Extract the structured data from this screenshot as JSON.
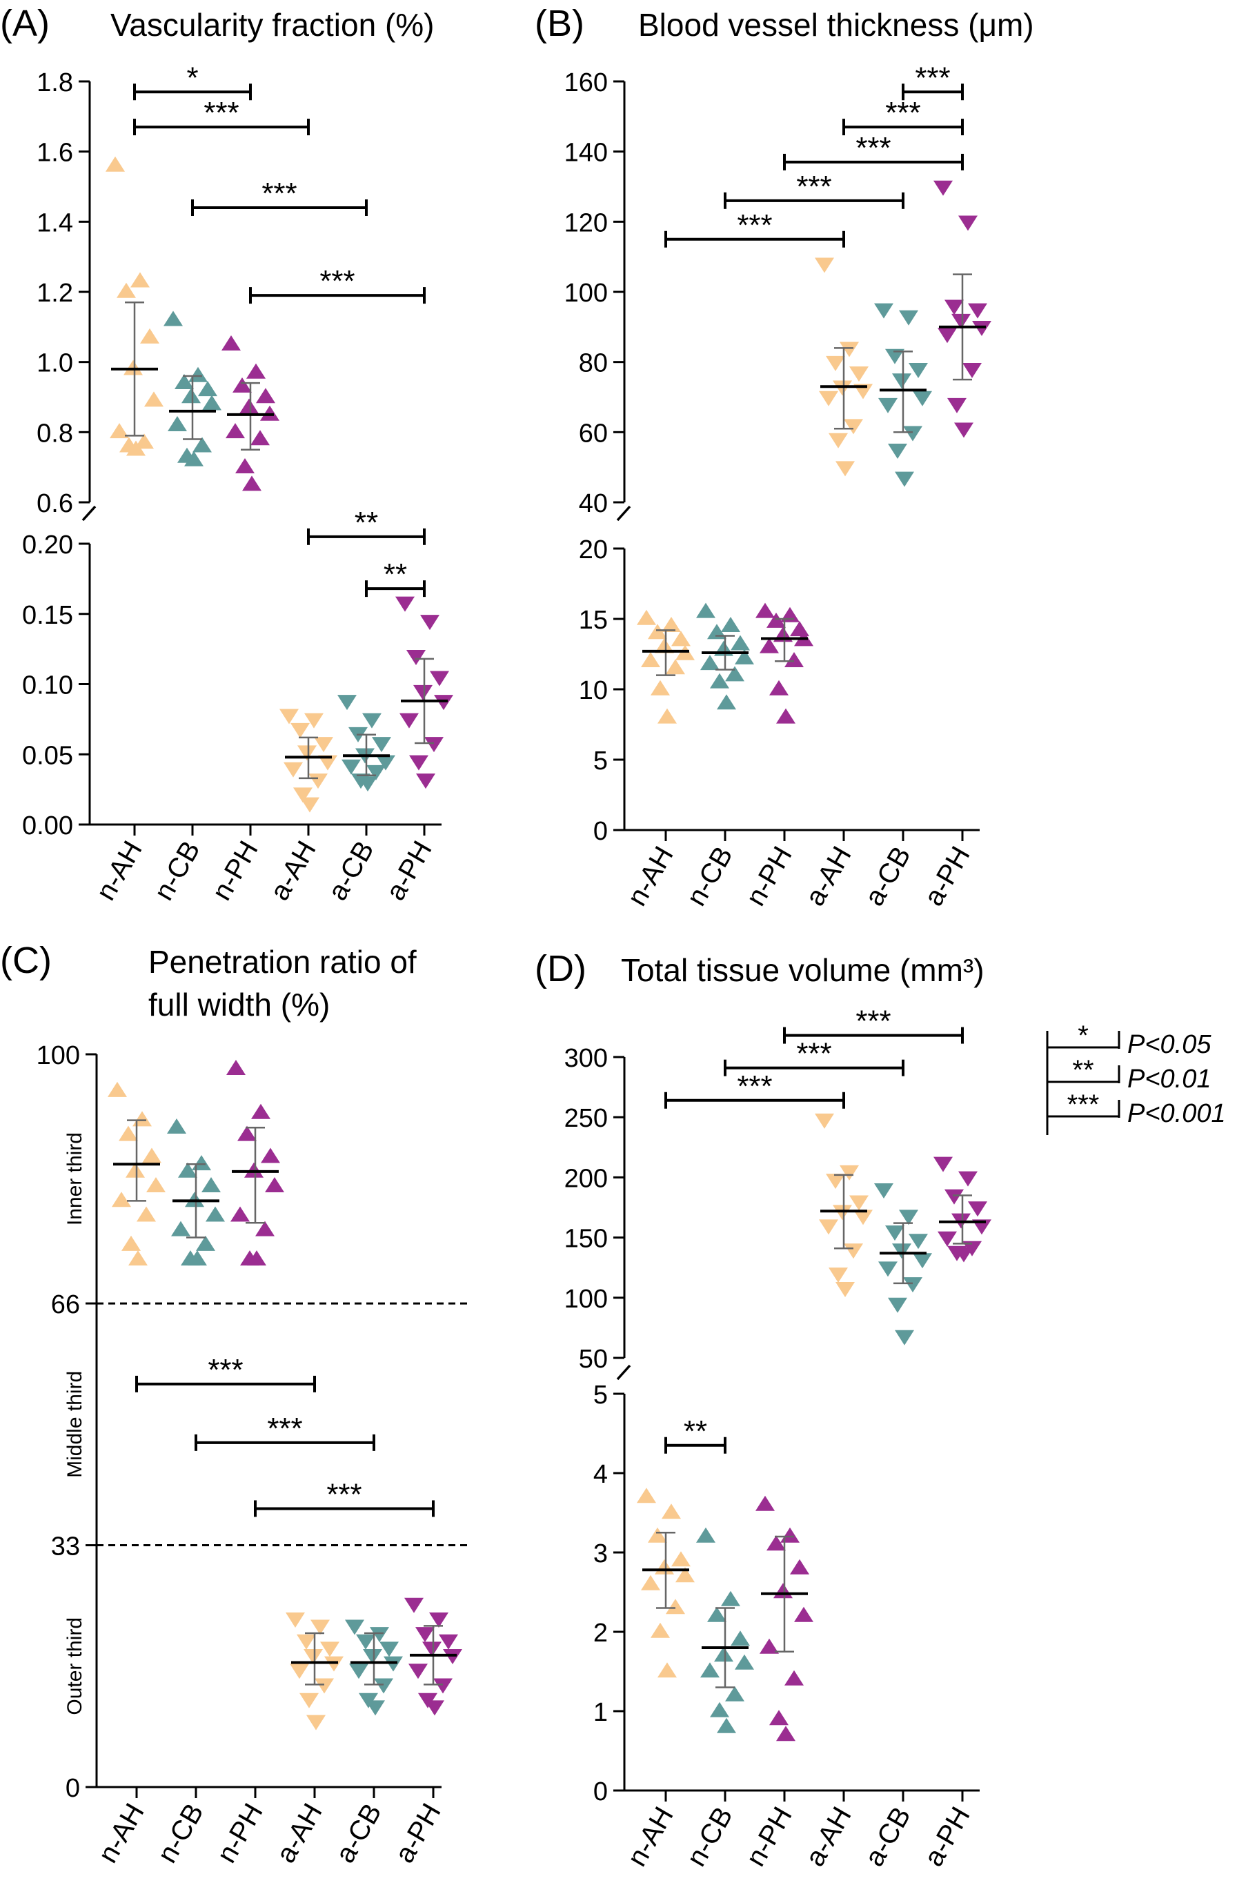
{
  "colors": {
    "AH": "#F9C98E",
    "CB": "#5E9A9A",
    "PH": "#9B2D91"
  },
  "legend": [
    {
      "stars": "*",
      "label": "P<0.05"
    },
    {
      "stars": "**",
      "label": "P<0.01"
    },
    {
      "stars": "***",
      "label": "P<0.001"
    }
  ],
  "chart_data": [
    {
      "type": "scatter",
      "panel": "(A)",
      "title": "Vascularity fraction (%)",
      "categories": [
        "n-AH",
        "n-CB",
        "n-PH",
        "a-AH",
        "a-CB",
        "a-PH"
      ],
      "broken_axis": {
        "upper": {
          "ylim": [
            0.6,
            1.8
          ],
          "ticks": [
            "0.6",
            "0.8",
            "1.0",
            "1.2",
            "1.4",
            "1.6",
            "1.8"
          ]
        },
        "lower": {
          "ylim": [
            0,
            0.2
          ],
          "ticks": [
            "0.00",
            "0.05",
            "0.10",
            "0.15",
            "0.20"
          ]
        }
      },
      "series": [
        {
          "category": "n-AH",
          "mean": 0.98,
          "sd": [
            0.79,
            1.17
          ],
          "points": [
            1.56,
            1.23,
            1.2,
            1.07,
            0.98,
            0.89,
            0.8,
            0.77,
            0.76,
            0.75
          ]
        },
        {
          "category": "n-CB",
          "mean": 0.86,
          "sd": [
            0.78,
            0.96
          ],
          "points": [
            1.12,
            0.96,
            0.94,
            0.92,
            0.9,
            0.88,
            0.82,
            0.76,
            0.73,
            0.72
          ]
        },
        {
          "category": "n-PH",
          "mean": 0.85,
          "sd": [
            0.75,
            0.94
          ],
          "points": [
            1.05,
            0.97,
            0.93,
            0.9,
            0.87,
            0.85,
            0.8,
            0.78,
            0.7,
            0.65
          ]
        },
        {
          "category": "a-AH",
          "mean": 0.048,
          "sd": [
            0.033,
            0.062
          ],
          "points": [
            0.078,
            0.075,
            0.068,
            0.058,
            0.052,
            0.045,
            0.04,
            0.032,
            0.022,
            0.015
          ]
        },
        {
          "category": "a-CB",
          "mean": 0.049,
          "sd": [
            0.035,
            0.064
          ],
          "points": [
            0.088,
            0.075,
            0.065,
            0.058,
            0.05,
            0.045,
            0.042,
            0.038,
            0.032,
            0.03
          ]
        },
        {
          "category": "a-PH",
          "mean": 0.088,
          "sd": [
            0.058,
            0.118
          ],
          "points": [
            0.158,
            0.145,
            0.12,
            0.105,
            0.095,
            0.088,
            0.075,
            0.058,
            0.045,
            0.032
          ]
        }
      ],
      "comparisons": [
        {
          "from": "n-AH",
          "to": "n-PH",
          "label": "*",
          "y": 1.77
        },
        {
          "from": "n-AH",
          "to": "a-AH",
          "label": "***",
          "y": 1.67
        },
        {
          "from": "n-CB",
          "to": "a-CB",
          "label": "***",
          "y": 1.44
        },
        {
          "from": "n-PH",
          "to": "a-PH",
          "label": "***",
          "y": 1.19
        },
        {
          "from": "a-AH",
          "to": "a-PH",
          "label": "**",
          "y": 0.205
        },
        {
          "from": "a-CB",
          "to": "a-PH",
          "label": "**",
          "y": 0.168
        }
      ]
    },
    {
      "type": "scatter",
      "panel": "(B)",
      "title": "Blood vessel thickness (μm)",
      "categories": [
        "n-AH",
        "n-CB",
        "n-PH",
        "a-AH",
        "a-CB",
        "a-PH"
      ],
      "broken_axis": {
        "upper": {
          "ylim": [
            40,
            160
          ],
          "ticks": [
            "40",
            "60",
            "80",
            "100",
            "120",
            "140",
            "160"
          ]
        },
        "lower": {
          "ylim": [
            0,
            20
          ],
          "ticks": [
            "0",
            "5",
            "10",
            "15",
            "20"
          ]
        }
      },
      "series": [
        {
          "category": "n-AH",
          "mean": 12.7,
          "sd": [
            11.0,
            14.2
          ],
          "points": [
            15.0,
            14.5,
            14.0,
            13.5,
            13.0,
            12.5,
            12.0,
            11.5,
            10.0,
            8.0
          ]
        },
        {
          "category": "n-CB",
          "mean": 12.6,
          "sd": [
            11.4,
            13.8
          ],
          "points": [
            15.5,
            14.5,
            14.0,
            13.2,
            12.8,
            12.2,
            11.8,
            11.0,
            10.5,
            9.0
          ]
        },
        {
          "category": "n-PH",
          "mean": 13.6,
          "sd": [
            12.0,
            15.0
          ],
          "points": [
            15.5,
            15.2,
            14.8,
            14.2,
            13.8,
            13.5,
            13.0,
            12.0,
            10.0,
            8.0
          ]
        },
        {
          "category": "a-AH",
          "mean": 73,
          "sd": [
            61,
            84
          ],
          "points": [
            108,
            84,
            80,
            77,
            73,
            72,
            70,
            62,
            58,
            50
          ]
        },
        {
          "category": "a-CB",
          "mean": 72,
          "sd": [
            60,
            83
          ],
          "points": [
            95,
            93,
            82,
            78,
            75,
            70,
            68,
            60,
            55,
            47
          ]
        },
        {
          "category": "a-PH",
          "mean": 90,
          "sd": [
            75,
            105
          ],
          "points": [
            130,
            120,
            96,
            95,
            92,
            90,
            88,
            78,
            68,
            61
          ]
        }
      ],
      "comparisons": [
        {
          "from": "a-CB",
          "to": "a-PH",
          "label": "***",
          "y": 157
        },
        {
          "from": "a-AH",
          "to": "a-PH",
          "label": "***",
          "y": 147
        },
        {
          "from": "n-PH",
          "to": "a-PH",
          "label": "***",
          "y": 137
        },
        {
          "from": "n-CB",
          "to": "a-CB",
          "label": "***",
          "y": 126
        },
        {
          "from": "n-AH",
          "to": "a-AH",
          "label": "***",
          "y": 115
        }
      ]
    },
    {
      "type": "scatter",
      "panel": "(C)",
      "title": "Penetration ratio of full width (%)",
      "title_lines": [
        "Penetration ratio of",
        "full width (%)"
      ],
      "categories": [
        "n-AH",
        "n-CB",
        "n-PH",
        "a-AH",
        "a-CB",
        "a-PH"
      ],
      "ylim": [
        0,
        100
      ],
      "yticks": [
        "0",
        "33",
        "66",
        "100"
      ],
      "regions": [
        "Inner third",
        "Middle third",
        "Outer third"
      ],
      "series": [
        {
          "category": "n-AH",
          "mean": 85,
          "sd": [
            80,
            91
          ],
          "points": [
            95,
            91,
            89,
            86,
            84,
            82,
            80,
            78,
            74,
            72
          ]
        },
        {
          "category": "n-CB",
          "mean": 80,
          "sd": [
            75,
            85
          ],
          "points": [
            90,
            85,
            84,
            82,
            80,
            78,
            76,
            74,
            72,
            72
          ]
        },
        {
          "category": "n-PH",
          "mean": 84,
          "sd": [
            77,
            90
          ],
          "points": [
            98,
            92,
            89,
            86,
            84,
            82,
            78,
            76,
            72,
            72
          ]
        },
        {
          "category": "a-AH",
          "mean": 17,
          "sd": [
            14,
            21
          ],
          "points": [
            23,
            22,
            20,
            19,
            18,
            17,
            16,
            14,
            12,
            9
          ]
        },
        {
          "category": "a-CB",
          "mean": 17,
          "sd": [
            14,
            21
          ],
          "points": [
            22,
            21,
            20,
            19,
            18,
            17,
            16,
            14,
            12,
            11
          ]
        },
        {
          "category": "a-PH",
          "mean": 18,
          "sd": [
            14,
            22
          ],
          "points": [
            25,
            23,
            21,
            20,
            19,
            18,
            16,
            14,
            12,
            11
          ]
        }
      ],
      "comparisons": [
        {
          "from": "n-AH",
          "to": "a-AH",
          "label": "***",
          "y": 55
        },
        {
          "from": "n-CB",
          "to": "a-CB",
          "label": "***",
          "y": 47
        },
        {
          "from": "n-PH",
          "to": "a-PH",
          "label": "***",
          "y": 38
        }
      ]
    },
    {
      "type": "scatter",
      "panel": "(D)",
      "title": "Total tissue volume (mm³)",
      "categories": [
        "n-AH",
        "n-CB",
        "n-PH",
        "a-AH",
        "a-CB",
        "a-PH"
      ],
      "broken_axis": {
        "upper": {
          "ylim": [
            50,
            300
          ],
          "ticks": [
            "50",
            "100",
            "150",
            "200",
            "250",
            "300"
          ]
        },
        "lower": {
          "ylim": [
            0,
            5
          ],
          "ticks": [
            "0",
            "1",
            "2",
            "3",
            "4",
            "5"
          ]
        }
      },
      "series": [
        {
          "category": "n-AH",
          "mean": 2.78,
          "sd": [
            2.3,
            3.25
          ],
          "points": [
            3.7,
            3.5,
            3.2,
            2.9,
            2.8,
            2.7,
            2.6,
            2.3,
            2.0,
            1.5
          ]
        },
        {
          "category": "n-CB",
          "mean": 1.8,
          "sd": [
            1.3,
            2.3
          ],
          "points": [
            3.2,
            2.4,
            2.2,
            1.9,
            1.7,
            1.6,
            1.5,
            1.2,
            1.0,
            0.8
          ]
        },
        {
          "category": "n-PH",
          "mean": 2.48,
          "sd": [
            1.75,
            3.2
          ],
          "points": [
            3.6,
            3.2,
            3.1,
            2.8,
            2.5,
            2.2,
            1.8,
            1.4,
            0.9,
            0.7
          ]
        },
        {
          "category": "a-AH",
          "mean": 172,
          "sd": [
            141,
            202
          ],
          "points": [
            248,
            205,
            198,
            180,
            172,
            168,
            160,
            140,
            120,
            108
          ]
        },
        {
          "category": "a-CB",
          "mean": 137,
          "sd": [
            112,
            162
          ],
          "points": [
            190,
            168,
            155,
            148,
            140,
            132,
            125,
            112,
            95,
            68
          ]
        },
        {
          "category": "a-PH",
          "mean": 163,
          "sd": [
            145,
            185
          ],
          "points": [
            212,
            200,
            185,
            175,
            165,
            160,
            150,
            142,
            138,
            137
          ]
        }
      ],
      "comparisons": [
        {
          "from": "n-PH",
          "to": "a-PH",
          "label": "***",
          "y": 318
        },
        {
          "from": "n-CB",
          "to": "a-CB",
          "label": "***",
          "y": 291
        },
        {
          "from": "n-AH",
          "to": "a-AH",
          "label": "***",
          "y": 264
        },
        {
          "from": "n-AH",
          "to": "n-CB",
          "label": "**",
          "y": 4.35
        }
      ]
    }
  ]
}
